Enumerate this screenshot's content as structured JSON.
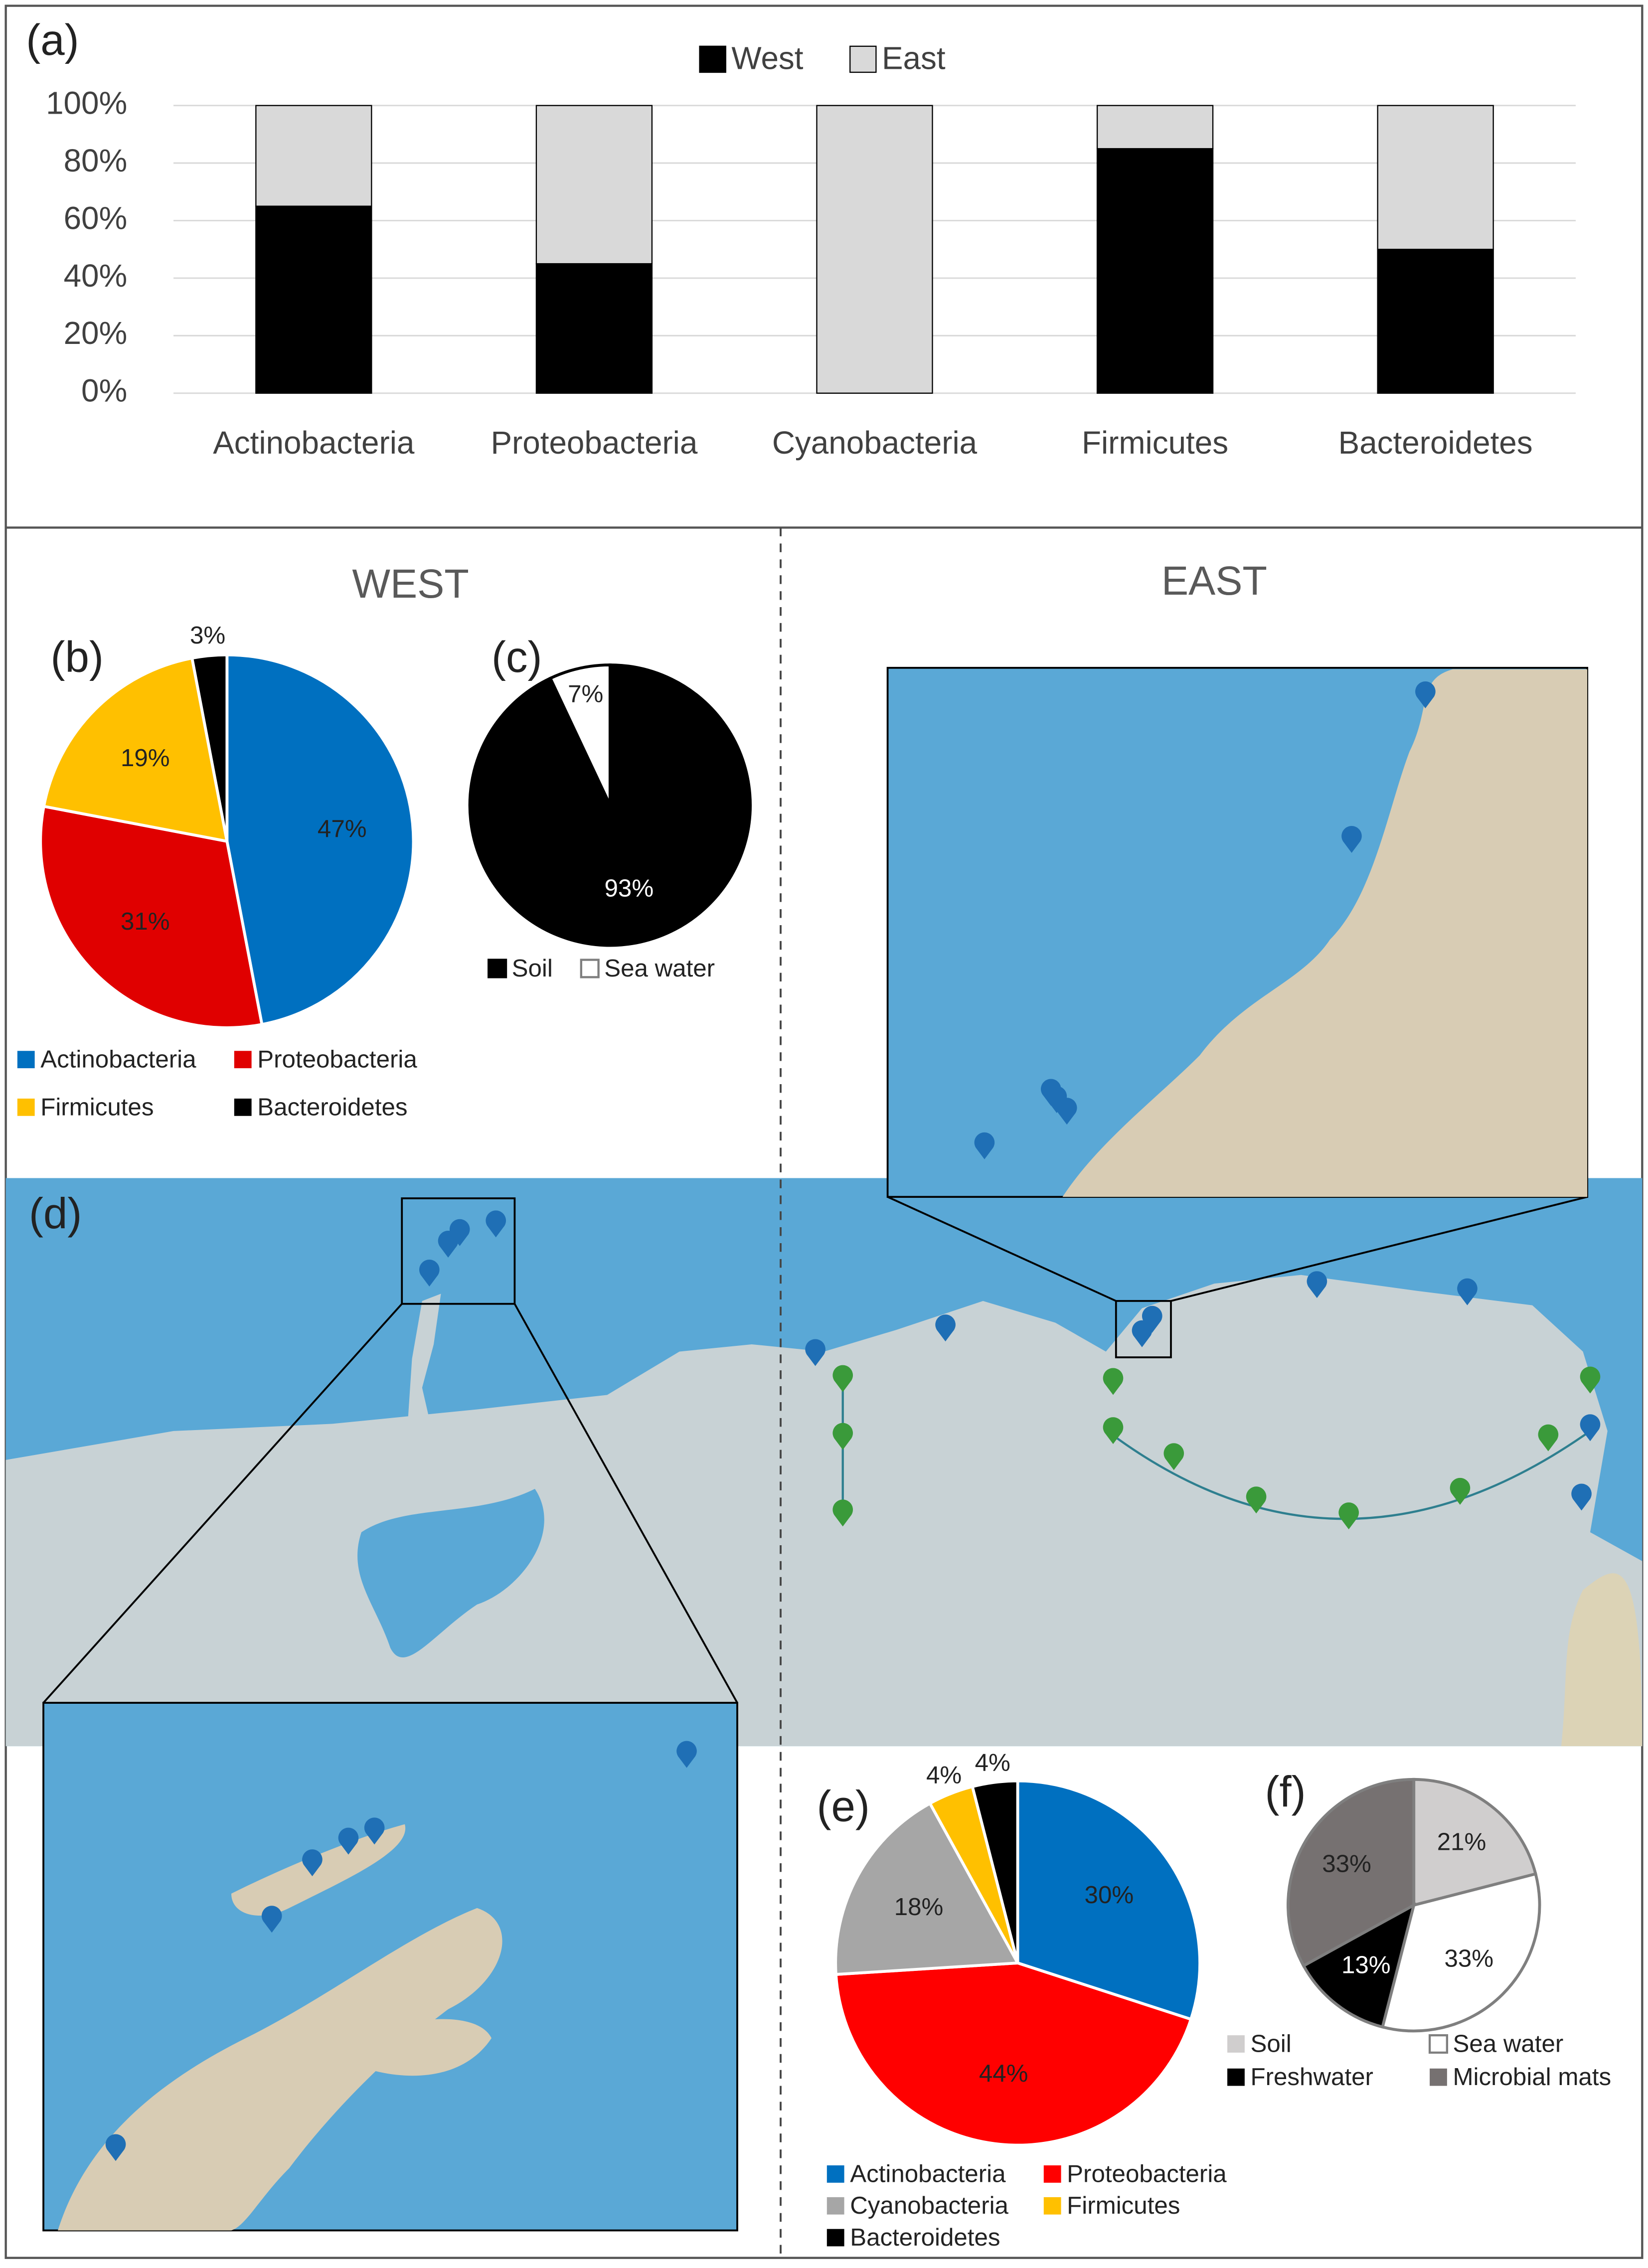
{
  "sections": {
    "west": "WEST",
    "east": "EAST"
  },
  "map": {
    "panel": "(d)"
  },
  "chart_data": [
    {
      "type": "bar",
      "panel": "(a)",
      "stacked": true,
      "categories": [
        "Actinobacteria",
        "Proteobacteria",
        "Cyanobacteria",
        "Firmicutes",
        "Bacteroidetes"
      ],
      "series": [
        {
          "name": "West",
          "color": "#000000",
          "values": [
            65,
            45,
            0,
            85,
            50
          ]
        },
        {
          "name": "East",
          "color": "#d9d9d9",
          "values": [
            35,
            55,
            100,
            15,
            50
          ]
        }
      ],
      "ylim": [
        0,
        100
      ],
      "yticks": [
        {
          "value": 0,
          "label": "0%"
        },
        {
          "value": 20,
          "label": "20%"
        },
        {
          "value": 40,
          "label": "40%"
        },
        {
          "value": 60,
          "label": "60%"
        },
        {
          "value": 80,
          "label": "80%"
        },
        {
          "value": 100,
          "label": "100%"
        }
      ],
      "grid": true,
      "legend": "top"
    },
    {
      "type": "pie",
      "panel": "(b)",
      "stroke": "#ffffff",
      "categories": [
        "Actinobacteria",
        "Proteobacteria",
        "Firmicutes",
        "Bacteroidetes"
      ],
      "values": [
        47,
        31,
        19,
        3
      ],
      "value_labels": [
        "47%",
        "31%",
        "19%",
        "3%"
      ],
      "colors": [
        "#0070c0",
        "#e00000",
        "#ffc000",
        "#000000"
      ]
    },
    {
      "type": "pie",
      "panel": "(c)",
      "stroke": "#000000",
      "categories": [
        "Soil",
        "Sea water"
      ],
      "values": [
        93,
        7
      ],
      "value_labels": [
        "93%",
        "7%"
      ],
      "colors": [
        "#000000",
        "#ffffff"
      ]
    },
    {
      "type": "pie",
      "panel": "(e)",
      "stroke": "#ffffff",
      "categories": [
        "Actinobacteria",
        "Proteobacteria",
        "Cyanobacteria",
        "Firmicutes",
        "Bacteroidetes"
      ],
      "values": [
        30,
        44,
        18,
        4,
        4
      ],
      "value_labels": [
        "30%",
        "44%",
        "18%",
        "4%",
        "4%"
      ],
      "colors": [
        "#0070c0",
        "#ff0000",
        "#a6a6a6",
        "#ffc000",
        "#000000"
      ]
    },
    {
      "type": "pie",
      "panel": "(f)",
      "stroke": "#7f7f7f",
      "categories": [
        "Soil",
        "Sea water",
        "Freshwater",
        "Microbial mats"
      ],
      "values": [
        21,
        33,
        13,
        33
      ],
      "value_labels": [
        "21%",
        "33%",
        "13%",
        "33%"
      ],
      "colors": [
        "#d0cece",
        "#ffffff",
        "#000000",
        "#767171"
      ]
    }
  ]
}
